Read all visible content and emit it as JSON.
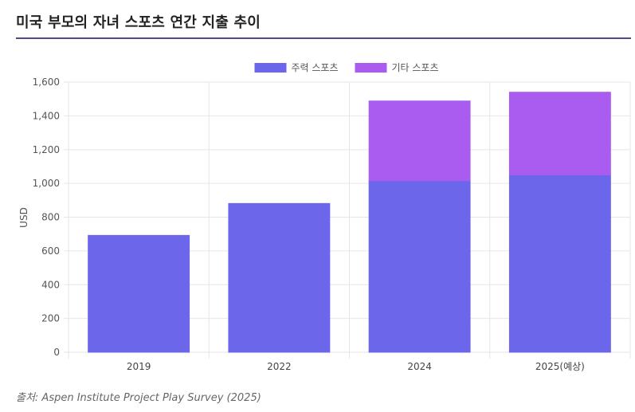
{
  "title": "미국 부모의 자녀 스포츠 연간 지출 추이",
  "source": "출처: Aspen Institute Project Play Survey (2025)",
  "chart_data": {
    "type": "bar",
    "stacked": true,
    "categories": [
      "2019",
      "2022",
      "2024",
      "2025(예상)"
    ],
    "series": [
      {
        "name": "주력 스포츠",
        "values": [
          692,
          881,
          1016,
          1050
        ],
        "color": "#6c66ea"
      },
      {
        "name": "기타 스포츠",
        "values": [
          0,
          0,
          472,
          490
        ],
        "color": "#a95cef"
      }
    ],
    "ylabel": "USD",
    "ylim": [
      0,
      1600
    ],
    "yticks": [
      0,
      200,
      400,
      600,
      800,
      1000,
      1200,
      1400,
      1600
    ],
    "ytick_labels": [
      "0",
      "200",
      "400",
      "600",
      "800",
      "1,000",
      "1,200",
      "1,400",
      "1,600"
    ],
    "grid": true,
    "legend_position": "top-center"
  }
}
